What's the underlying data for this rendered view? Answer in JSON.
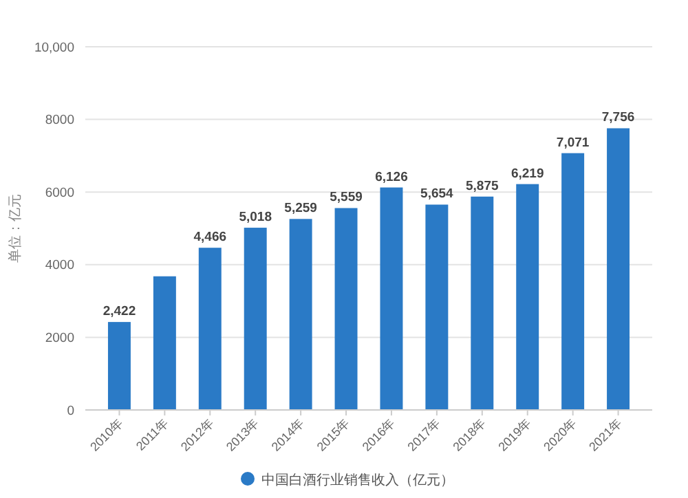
{
  "chart_data": {
    "type": "bar",
    "ylabel": "单位：亿元",
    "categories": [
      "2010年",
      "2011年",
      "2012年",
      "2013年",
      "2014年",
      "2015年",
      "2016年",
      "2017年",
      "2018年",
      "2019年",
      "2020年",
      "2021年"
    ],
    "series": [
      {
        "name": "中国白酒行业销售收入（亿元）",
        "color": "#2a7ac6",
        "values": [
          2422,
          3680,
          4466,
          5018,
          5259,
          5559,
          6126,
          5654,
          5875,
          6219,
          7071,
          7756
        ],
        "value_labels": [
          "2,422",
          null,
          "4,466",
          "5,018",
          "5,259",
          "5,559",
          "6,126",
          "5,654",
          "5,875",
          "6,219",
          "7,071",
          "7,756"
        ]
      }
    ],
    "ylim": [
      0,
      10000
    ],
    "yticks": [
      0,
      2000,
      4000,
      6000,
      8000,
      {
        "value": 10000,
        "label": "10,000"
      }
    ],
    "grid": "y",
    "legend": "bottom"
  }
}
